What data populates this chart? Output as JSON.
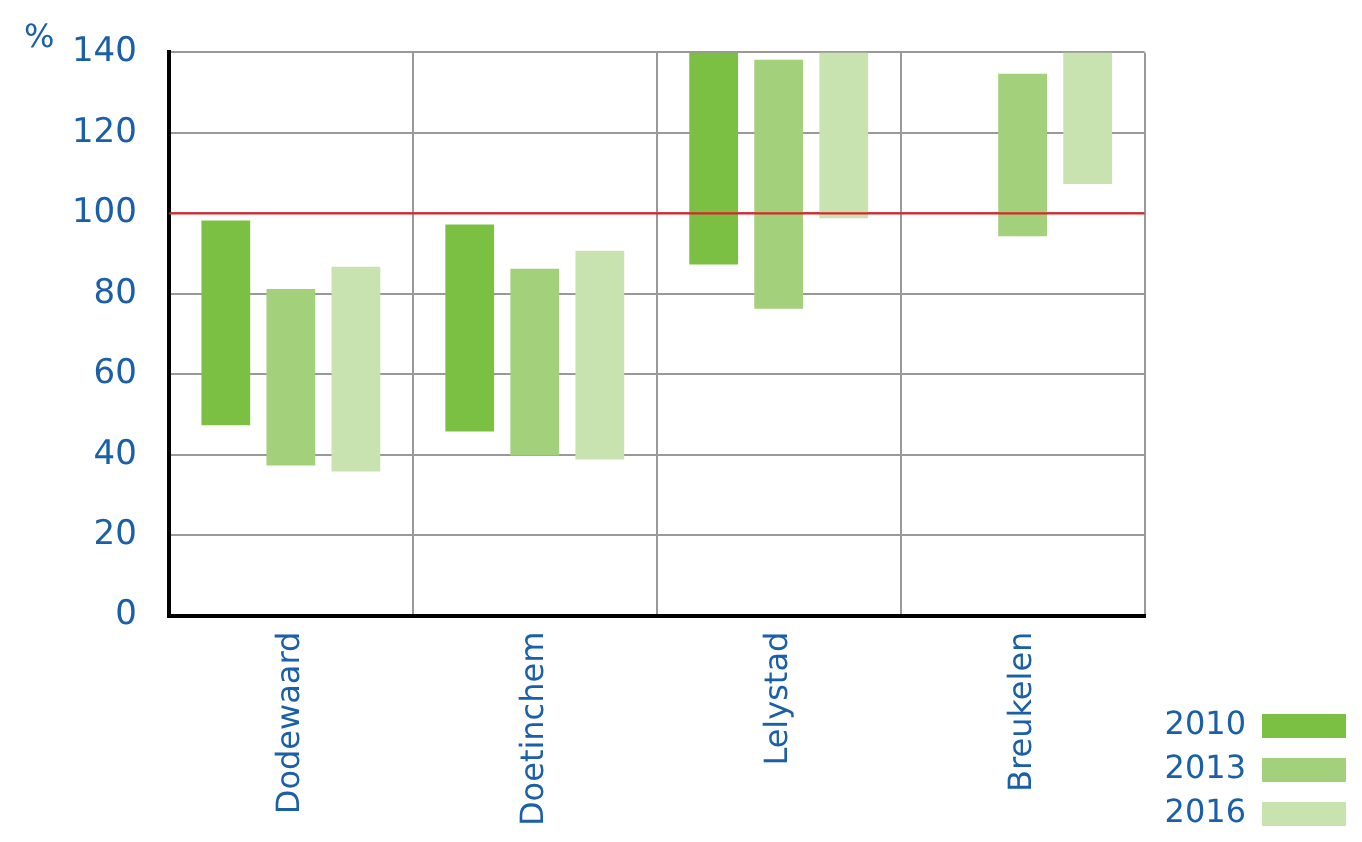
{
  "chart_data": {
    "type": "bar",
    "ylabel": "%",
    "categories": [
      "Dodewaard",
      "Doetinchem",
      "Lelystad",
      "Breukelen"
    ],
    "series": [
      {
        "name": "2010",
        "color": "#7cc043",
        "base": [
          47.3,
          45.8,
          87.3,
          null
        ],
        "values": [
          50.9,
          51.4,
          52.7,
          null
        ]
      },
      {
        "name": "2013",
        "color": "#a3d07a",
        "base": [
          37.3,
          39.8,
          76.3,
          94.3
        ],
        "values": [
          43.9,
          46.4,
          61.9,
          40.4
        ]
      },
      {
        "name": "2016",
        "color": "#c9e3b0",
        "base": [
          35.8,
          38.8,
          98.8,
          107.3
        ],
        "values": [
          50.9,
          51.9,
          41.2,
          32.7
        ]
      }
    ],
    "ylim": [
      0,
      140
    ],
    "yticks": [
      0,
      20,
      40,
      60,
      80,
      100,
      120,
      140
    ],
    "grid": true,
    "legend": "bottom right",
    "ref_lines": [
      {
        "axis": "y",
        "value": 100,
        "color": "#d9262c"
      }
    ]
  }
}
